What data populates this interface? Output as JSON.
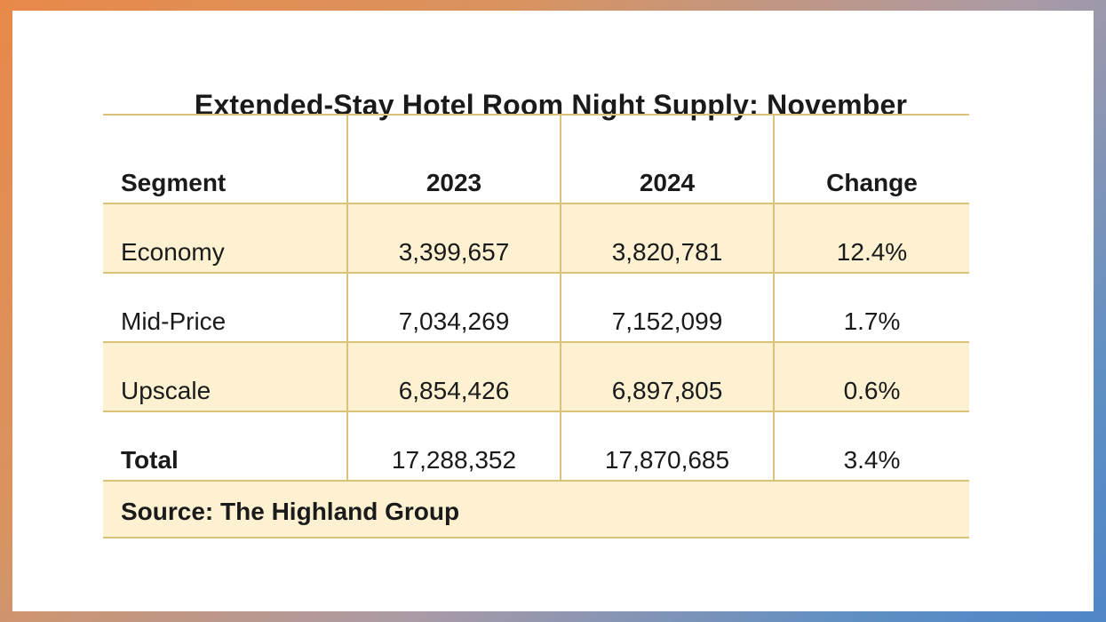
{
  "title": "Extended-Stay Hotel Room Night Supply: November",
  "table": {
    "headers": [
      "Segment",
      "2023",
      "2024",
      "Change"
    ],
    "rows": [
      {
        "segment": "Economy",
        "y2023": "3,399,657",
        "y2024": "3,820,781",
        "change": "12.4%"
      },
      {
        "segment": "Mid-Price",
        "y2023": "7,034,269",
        "y2024": "7,152,099",
        "change": "1.7%"
      },
      {
        "segment": "Upscale",
        "y2023": "6,854,426",
        "y2024": "6,897,805",
        "change": "0.6%"
      },
      {
        "segment": "Total",
        "y2023": "17,288,352",
        "y2024": "17,870,685",
        "change": "3.4%"
      }
    ],
    "source": "Source: The Highland Group"
  },
  "colors": {
    "rule": "#d9c27a",
    "shade": "#fdf1d2"
  }
}
